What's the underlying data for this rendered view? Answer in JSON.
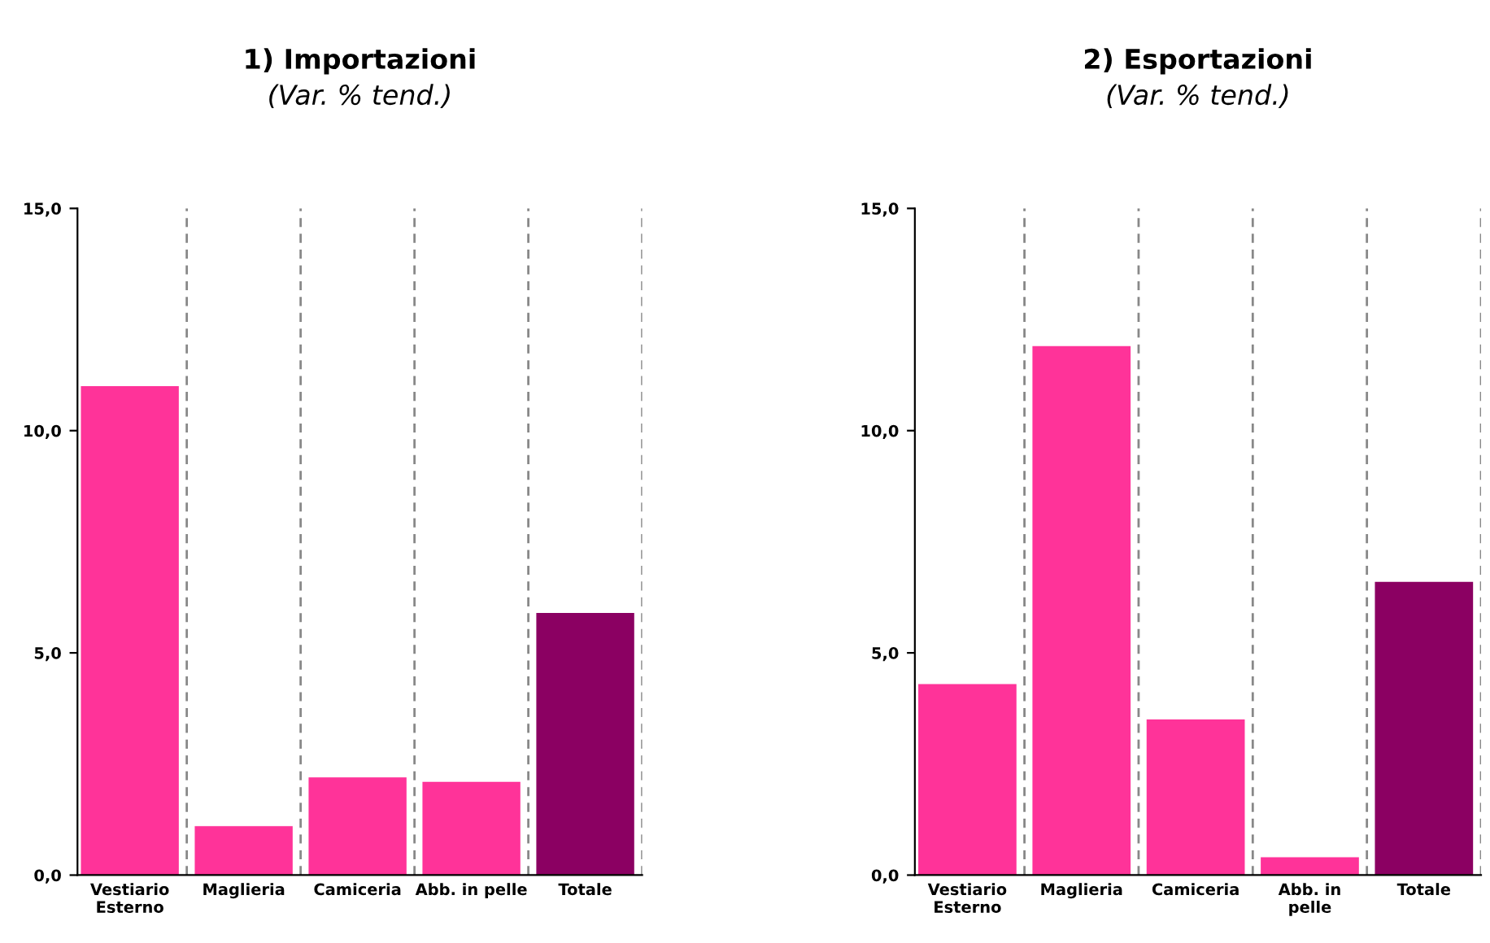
{
  "chart_data": [
    {
      "type": "bar",
      "title": "1) Importazioni",
      "subtitle": "(Var. % tend.)",
      "categories": [
        "Vestiario\nEsterno",
        "Maglieria",
        "Camiceria",
        "Abb. in pelle",
        "Totale"
      ],
      "values": [
        11.0,
        1.1,
        2.2,
        2.1,
        5.9
      ],
      "colors": [
        "#ff3399",
        "#ff3399",
        "#ff3399",
        "#ff3399",
        "#8b0062"
      ],
      "ylim": [
        0,
        15
      ],
      "yticks": [
        {
          "value": 0,
          "label": "0,0"
        },
        {
          "value": 5,
          "label": "5,0"
        },
        {
          "value": 10,
          "label": "10,0"
        },
        {
          "value": 15,
          "label": "15,0"
        }
      ],
      "grid": "x",
      "legend": false
    },
    {
      "type": "bar",
      "title": "2) Esportazioni",
      "subtitle": "(Var. % tend.)",
      "categories": [
        "Vestiario\nEsterno",
        "Maglieria",
        "Camiceria",
        "Abb. in\npelle",
        "Totale"
      ],
      "values": [
        4.3,
        11.9,
        3.5,
        0.4,
        6.6
      ],
      "colors": [
        "#ff3399",
        "#ff3399",
        "#ff3399",
        "#ff3399",
        "#8b0062"
      ],
      "ylim": [
        0,
        15
      ],
      "yticks": [
        {
          "value": 0,
          "label": "0,0"
        },
        {
          "value": 5,
          "label": "5,0"
        },
        {
          "value": 10,
          "label": "10,0"
        },
        {
          "value": 15,
          "label": "15,0"
        }
      ],
      "grid": "x",
      "legend": false
    }
  ]
}
